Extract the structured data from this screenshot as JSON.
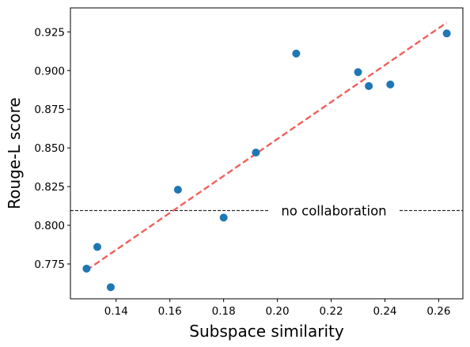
{
  "chart_data": {
    "type": "scatter",
    "xlabel": "Subspace similarity",
    "ylabel": "Rouge-L score",
    "xlim": [
      0.123,
      0.269
    ],
    "ylim": [
      0.7525,
      0.9405
    ],
    "xticks": [
      0.14,
      0.16,
      0.18,
      0.2,
      0.22,
      0.24,
      0.26
    ],
    "yticks": [
      0.775,
      0.8,
      0.825,
      0.85,
      0.875,
      0.9,
      0.925
    ],
    "grid": false,
    "series": [
      {
        "marker_color": "#1f77b4",
        "x": [
          0.129,
          0.133,
          0.138,
          0.163,
          0.18,
          0.192,
          0.207,
          0.23,
          0.234,
          0.242,
          0.263
        ],
        "y": [
          0.772,
          0.786,
          0.76,
          0.823,
          0.805,
          0.847,
          0.911,
          0.899,
          0.89,
          0.891,
          0.924
        ]
      }
    ],
    "trend_line": {
      "color": "#f0605a",
      "x": [
        0.129,
        0.263
      ],
      "y": [
        0.771,
        0.931
      ]
    },
    "reference_line": {
      "y": 0.8095,
      "color": "#000000",
      "label": "no collaboration"
    }
  }
}
